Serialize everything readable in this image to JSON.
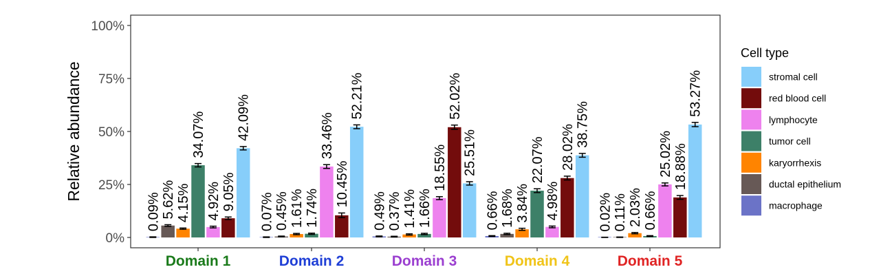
{
  "chart_data": {
    "type": "bar",
    "ylabel": "Relative abundance",
    "y_ticks": [
      "0%",
      "25%",
      "50%",
      "75%",
      "100%"
    ],
    "ylim": [
      0,
      100
    ],
    "grid": false,
    "legend_position": "right",
    "legend_title": "Cell type",
    "categories": [
      "Domain 1",
      "Domain 2",
      "Domain 3",
      "Domain 4",
      "Domain 5"
    ],
    "category_colors": [
      "#1a7a1a",
      "#1f3fd6",
      "#9b3fd0",
      "#f0c419",
      "#e02424"
    ],
    "legend": [
      {
        "name": "stromal cell",
        "color": "#87cefa"
      },
      {
        "name": "red blood cell",
        "color": "#730c0c"
      },
      {
        "name": "lymphocyte",
        "color": "#ee82ee"
      },
      {
        "name": "tumor cell",
        "color": "#3d8068"
      },
      {
        "name": "karyorrhexis",
        "color": "#ff8400"
      },
      {
        "name": "ductal epithelium",
        "color": "#675956"
      },
      {
        "name": "macrophage",
        "color": "#6b73c7"
      }
    ],
    "groups": [
      {
        "bars": [
          {
            "series": "macrophage",
            "value": 0.09,
            "err": 0.2,
            "label": "0.09%"
          },
          {
            "series": "ductal epithelium",
            "value": 5.62,
            "err": 0.4,
            "label": "5.62%"
          },
          {
            "series": "karyorrhexis",
            "value": 4.15,
            "err": 0.3,
            "label": "4.15%"
          },
          {
            "series": "tumor cell",
            "value": 34.07,
            "err": 0.8,
            "label": "34.07%"
          },
          {
            "series": "lymphocyte",
            "value": 4.92,
            "err": 0.4,
            "label": "4.92%"
          },
          {
            "series": "red blood cell",
            "value": 9.05,
            "err": 0.6,
            "label": "9.05%"
          },
          {
            "series": "stromal cell",
            "value": 42.09,
            "err": 0.8,
            "label": "42.09%"
          }
        ]
      },
      {
        "bars": [
          {
            "series": "macrophage",
            "value": 0.07,
            "err": 0.2,
            "label": "0.07%"
          },
          {
            "series": "ductal epithelium",
            "value": 0.45,
            "err": 0.2,
            "label": "0.45%"
          },
          {
            "series": "karyorrhexis",
            "value": 1.61,
            "err": 0.3,
            "label": "1.61%"
          },
          {
            "series": "tumor cell",
            "value": 1.74,
            "err": 0.3,
            "label": "1.74%"
          },
          {
            "series": "lymphocyte",
            "value": 33.46,
            "err": 0.9,
            "label": "33.46%"
          },
          {
            "series": "red blood cell",
            "value": 10.45,
            "err": 1.1,
            "label": "10.45%"
          },
          {
            "series": "stromal cell",
            "value": 52.21,
            "err": 0.9,
            "label": "52.21%"
          }
        ]
      },
      {
        "bars": [
          {
            "series": "macrophage",
            "value": 0.49,
            "err": 0.2,
            "label": "0.49%"
          },
          {
            "series": "ductal epithelium",
            "value": 0.37,
            "err": 0.2,
            "label": "0.37%"
          },
          {
            "series": "karyorrhexis",
            "value": 1.41,
            "err": 0.3,
            "label": "1.41%"
          },
          {
            "series": "tumor cell",
            "value": 1.66,
            "err": 0.3,
            "label": "1.66%"
          },
          {
            "series": "lymphocyte",
            "value": 18.55,
            "err": 0.7,
            "label": "18.55%"
          },
          {
            "series": "red blood cell",
            "value": 52.02,
            "err": 1.0,
            "label": "52.02%"
          },
          {
            "series": "stromal cell",
            "value": 25.51,
            "err": 0.8,
            "label": "25.51%"
          }
        ]
      },
      {
        "bars": [
          {
            "series": "macrophage",
            "value": 0.66,
            "err": 0.2,
            "label": "0.66%"
          },
          {
            "series": "ductal epithelium",
            "value": 1.68,
            "err": 0.3,
            "label": "1.68%"
          },
          {
            "series": "karyorrhexis",
            "value": 3.84,
            "err": 0.5,
            "label": "3.84%"
          },
          {
            "series": "tumor cell",
            "value": 22.07,
            "err": 0.9,
            "label": "22.07%"
          },
          {
            "series": "lymphocyte",
            "value": 4.98,
            "err": 0.4,
            "label": "4.98%"
          },
          {
            "series": "red blood cell",
            "value": 28.02,
            "err": 0.9,
            "label": "28.02%"
          },
          {
            "series": "stromal cell",
            "value": 38.75,
            "err": 0.9,
            "label": "38.75%"
          }
        ]
      },
      {
        "bars": [
          {
            "series": "macrophage",
            "value": 0.02,
            "err": 0.1,
            "label": "0.02%"
          },
          {
            "series": "ductal epithelium",
            "value": 0.11,
            "err": 0.1,
            "label": "0.11%"
          },
          {
            "series": "karyorrhexis",
            "value": 2.03,
            "err": 0.3,
            "label": "2.03%"
          },
          {
            "series": "tumor cell",
            "value": 0.66,
            "err": 0.2,
            "label": "0.66%"
          },
          {
            "series": "lymphocyte",
            "value": 25.02,
            "err": 0.7,
            "label": "25.02%"
          },
          {
            "series": "red blood cell",
            "value": 18.88,
            "err": 0.9,
            "label": "18.88%"
          },
          {
            "series": "stromal cell",
            "value": 53.27,
            "err": 1.0,
            "label": "53.27%"
          }
        ]
      }
    ]
  }
}
